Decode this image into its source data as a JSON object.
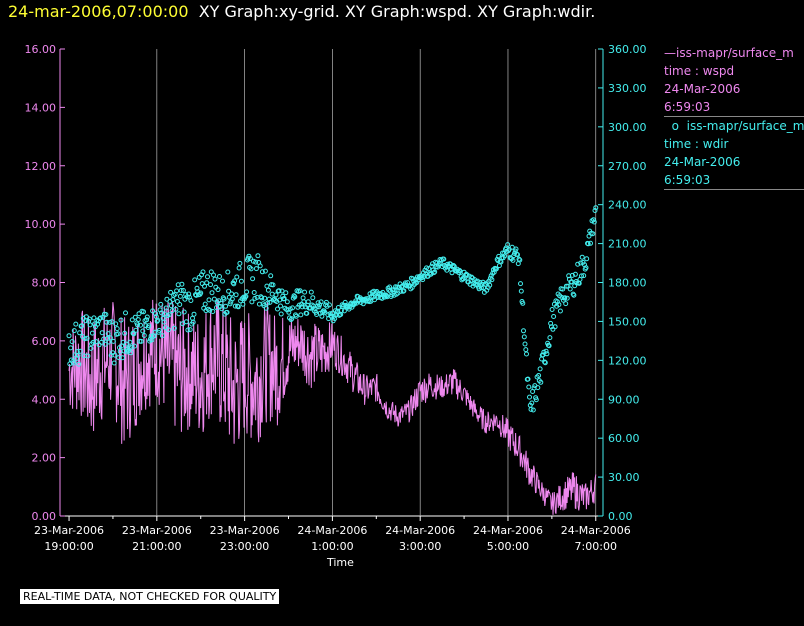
{
  "header": {
    "timestamp": "24-mar-2006,07:00:00",
    "graphs": "XY Graph:xy-grid.  XY Graph:wspd.  XY Graph:wdir."
  },
  "legend": {
    "series1": {
      "name": "iss-mapr/surface_m",
      "line2": "time : wspd",
      "line3": "24-Mar-2006",
      "line4": "6:59:03"
    },
    "series2": {
      "name": "iss-mapr/surface_m",
      "line2": "time : wdir",
      "line3": "24-Mar-2006",
      "line4": "6:59:03"
    }
  },
  "footer": {
    "text": "REAL-TIME DATA, NOT CHECKED FOR QUALITY"
  },
  "colors": {
    "wspd": "#ee88ee",
    "wdir": "#44eeee",
    "grid": "#bbbbbb",
    "timestamp": "#ffff33"
  },
  "chart_data": {
    "type": "line",
    "xlabel": "Time",
    "x_unit": "hours since 23-Mar-2006 19:00",
    "xlim": [
      0,
      12.0
    ],
    "left_ylim": [
      0,
      16
    ],
    "right_ylim": [
      0,
      360
    ],
    "left_ticks": [
      "0.00",
      "2.00",
      "4.00",
      "6.00",
      "8.00",
      "10.00",
      "12.00",
      "14.00",
      "16.00"
    ],
    "right_ticks": [
      "0.00",
      "30.00",
      "60.00",
      "90.00",
      "120.00",
      "150.00",
      "180.00",
      "210.00",
      "240.00",
      "270.00",
      "300.00",
      "330.00",
      "360.00"
    ],
    "x_ticks": [
      {
        "t": 0,
        "date": "23-Mar-2006",
        "time": "19:00:00"
      },
      {
        "t": 2,
        "date": "23-Mar-2006",
        "time": "21:00:00"
      },
      {
        "t": 4,
        "date": "23-Mar-2006",
        "time": "23:00:00"
      },
      {
        "t": 6,
        "date": "24-Mar-2006",
        "time": "1:00:00"
      },
      {
        "t": 8,
        "date": "24-Mar-2006",
        "time": "3:00:00"
      },
      {
        "t": 10,
        "date": "24-Mar-2006",
        "time": "5:00:00"
      },
      {
        "t": 12,
        "date": "24-Mar-2006",
        "time": "7:00:00"
      }
    ],
    "series": [
      {
        "name": "wspd",
        "axis": "left",
        "style": "line",
        "x": [
          0,
          0.25,
          0.5,
          0.75,
          1,
          1.25,
          1.5,
          1.75,
          2,
          2.25,
          2.5,
          2.75,
          3,
          3.25,
          3.5,
          3.75,
          4,
          4.25,
          4.5,
          4.75,
          5,
          5.25,
          5.5,
          5.75,
          6,
          6.25,
          6.5,
          6.75,
          7,
          7.25,
          7.5,
          7.75,
          8,
          8.25,
          8.5,
          8.75,
          9,
          9.25,
          9.5,
          9.75,
          10,
          10.25,
          10.5,
          10.75,
          11,
          11.25,
          11.5,
          11.75,
          12
        ],
        "values": [
          5.0,
          5.3,
          4.6,
          5.2,
          5.5,
          4.5,
          5.0,
          5.6,
          5.8,
          5.3,
          4.9,
          5.0,
          4.8,
          5.6,
          5.1,
          4.3,
          4.9,
          4.6,
          5.3,
          5.0,
          5.7,
          6.0,
          5.5,
          5.6,
          5.9,
          5.4,
          4.8,
          4.3,
          4.4,
          3.7,
          3.4,
          3.6,
          4.3,
          4.5,
          4.4,
          4.6,
          4.2,
          3.6,
          3.2,
          3.3,
          2.8,
          2.3,
          1.5,
          0.9,
          0.4,
          0.7,
          0.9,
          0.6,
          1.0
        ],
        "spread": [
          1.2,
          1.5,
          1.7,
          1.6,
          1.5,
          1.8,
          1.6,
          1.5,
          1.5,
          1.7,
          1.8,
          1.6,
          1.7,
          1.7,
          1.9,
          1.9,
          1.7,
          1.8,
          1.6,
          1.5,
          1.0,
          0.8,
          0.9,
          0.8,
          0.6,
          0.5,
          0.5,
          0.4,
          0.4,
          0.3,
          0.3,
          0.3,
          0.4,
          0.4,
          0.3,
          0.4,
          0.3,
          0.3,
          0.3,
          0.3,
          0.4,
          0.4,
          0.4,
          0.3,
          0.3,
          0.4,
          0.5,
          0.4,
          0.4
        ]
      },
      {
        "name": "wdir",
        "axis": "right",
        "style": "markers",
        "x": [
          0,
          0.25,
          0.5,
          0.75,
          1,
          1.25,
          1.5,
          1.75,
          2,
          2.25,
          2.5,
          2.75,
          3,
          3.25,
          3.5,
          3.75,
          4,
          4.25,
          4.5,
          4.75,
          5,
          5.25,
          5.5,
          5.75,
          6,
          6.25,
          6.5,
          6.75,
          7,
          7.25,
          7.5,
          7.75,
          8,
          8.25,
          8.5,
          8.75,
          9,
          9.25,
          9.5,
          9.75,
          10,
          10.25,
          10.5,
          10.75,
          11,
          11.25,
          11.5,
          11.75,
          12
        ],
        "values": [
          130,
          135,
          140,
          145,
          135,
          140,
          140,
          145,
          150,
          155,
          165,
          160,
          170,
          175,
          170,
          175,
          180,
          185,
          175,
          170,
          160,
          165,
          165,
          160,
          155,
          160,
          165,
          167,
          170,
          172,
          175,
          178,
          185,
          190,
          195,
          190,
          185,
          180,
          175,
          195,
          205,
          200,
          80,
          110,
          150,
          170,
          180,
          195,
          235
        ],
        "spread": [
          15,
          18,
          15,
          15,
          18,
          18,
          15,
          15,
          12,
          15,
          18,
          18,
          18,
          18,
          15,
          18,
          18,
          20,
          15,
          12,
          10,
          10,
          10,
          8,
          6,
          4,
          4,
          4,
          4,
          4,
          4,
          4,
          4,
          4,
          4,
          4,
          4,
          4,
          4,
          4,
          6,
          6,
          10,
          10,
          10,
          10,
          10,
          10,
          6
        ]
      }
    ]
  }
}
